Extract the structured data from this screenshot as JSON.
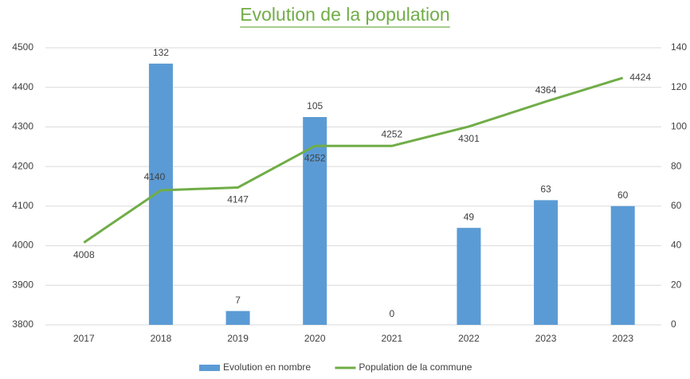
{
  "chart_data": {
    "type": "combo",
    "title": "Evolution de la population",
    "categories": [
      "2017",
      "2018",
      "2019",
      "2020",
      "2021",
      "2022",
      "2023",
      "2023"
    ],
    "series": [
      {
        "name": "Evolution en nombre",
        "type": "bar",
        "axis": "y2",
        "color": "#5b9bd5",
        "values": [
          null,
          132,
          7,
          105,
          0,
          49,
          63,
          60
        ]
      },
      {
        "name": "Population de la commune",
        "type": "line",
        "axis": "y",
        "color": "#70ad47",
        "values": [
          4008,
          4140,
          4147,
          4252,
          4252,
          4301,
          4364,
          4424
        ]
      }
    ],
    "ylim": [
      3800,
      4500
    ],
    "yticks": [
      3800,
      3900,
      4000,
      4100,
      4200,
      4300,
      4400,
      4500
    ],
    "y2lim": [
      0,
      140
    ],
    "y2ticks": [
      0,
      20,
      40,
      60,
      80,
      100,
      120,
      140
    ],
    "grid": true,
    "legend": "bottom"
  }
}
